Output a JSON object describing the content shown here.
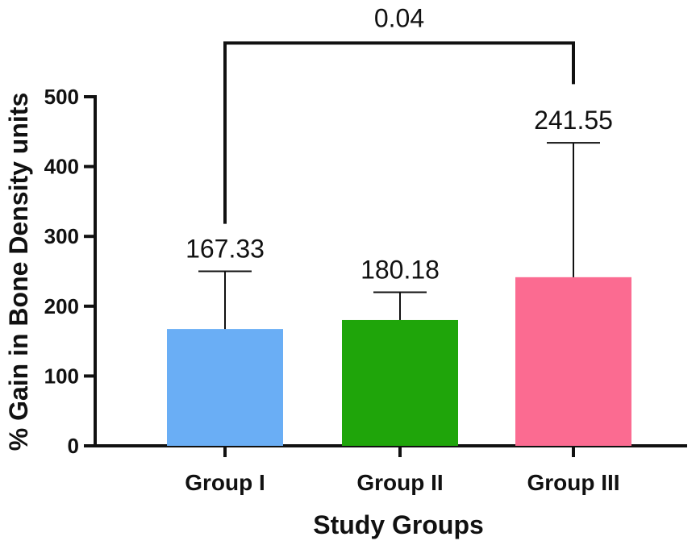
{
  "chart_data": {
    "type": "bar",
    "categories": [
      "Group I",
      "Group II",
      "Group III"
    ],
    "values": [
      167.33,
      180.18,
      241.55
    ],
    "error_upper": [
      250,
      220,
      434
    ],
    "data_labels": [
      "167.33",
      "180.18",
      "241.55"
    ],
    "colors": [
      "#6aaef5",
      "#1fa50a",
      "#fb6b91"
    ],
    "xlabel": "Study Groups",
    "ylabel": "% Gain in  Bone Density units",
    "ylim": [
      0,
      500
    ],
    "yticks": [
      0,
      100,
      200,
      300,
      400,
      500
    ],
    "ytick_labels": [
      "0",
      "100",
      "200",
      "300",
      "400",
      "500"
    ],
    "significance": {
      "from": 0,
      "to": 2,
      "label": "0.04",
      "bracket_y": 577,
      "left_drop_to": 318
    }
  }
}
